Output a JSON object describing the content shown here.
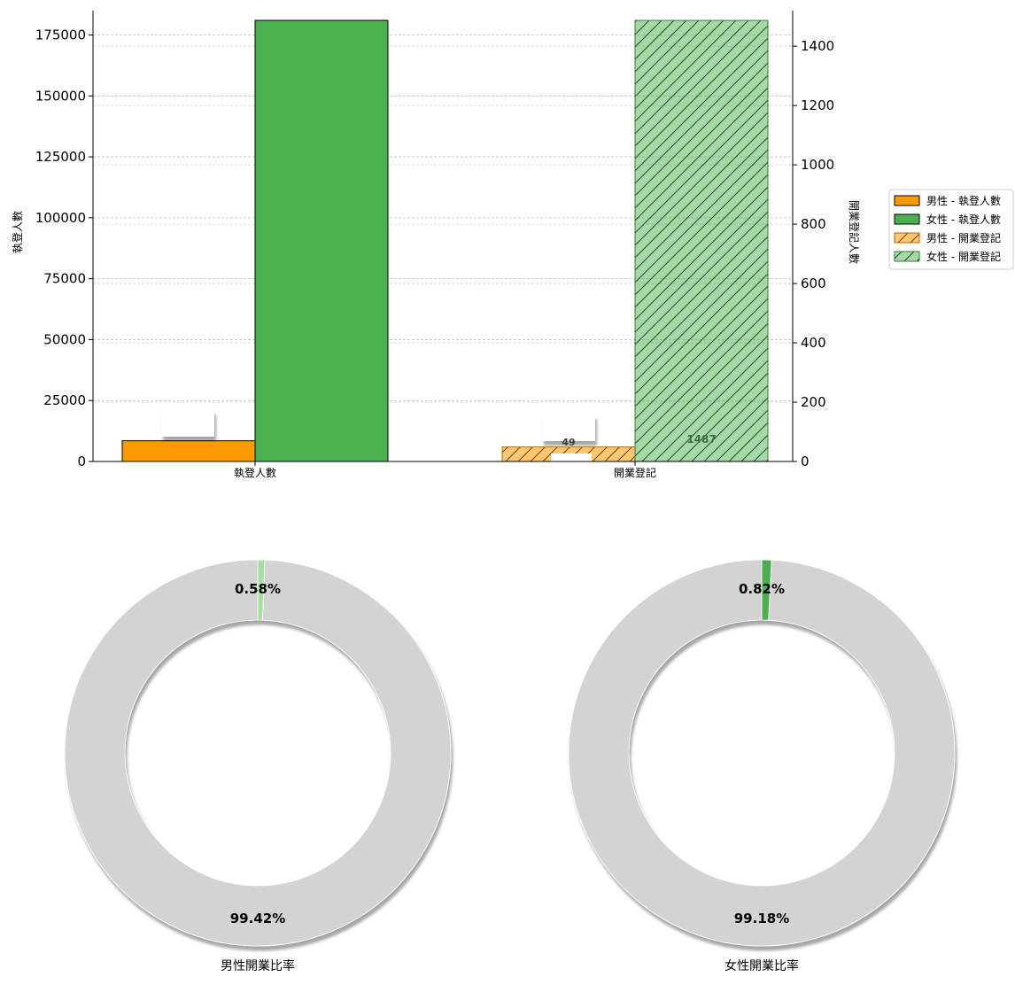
{
  "chart_data": [
    {
      "type": "bar",
      "categories": [
        "執登人數",
        "開業登記"
      ],
      "left_axis": {
        "label": "執登人數",
        "ylim": [
          0,
          185000
        ],
        "ticks": [
          0,
          25000,
          50000,
          75000,
          100000,
          125000,
          150000,
          175000
        ],
        "tick_labels": [
          "0",
          "25000",
          "50000",
          "75000",
          "100000",
          "125000",
          "150000",
          "175000"
        ]
      },
      "right_axis": {
        "label": "開業登記人數",
        "ylim": [
          0,
          1520
        ],
        "ticks": [
          0,
          200,
          400,
          600,
          800,
          1000,
          1200,
          1400
        ],
        "tick_labels": [
          "0",
          "200",
          "400",
          "600",
          "800",
          "1000",
          "1200",
          "1400"
        ]
      },
      "series": [
        {
          "name": "男性 - 執登人數",
          "category": "執登人數",
          "axis": "left",
          "value": 8500,
          "color": "#ff9900",
          "hatch": false,
          "alpha": 1.0
        },
        {
          "name": "女性 - 執登人數",
          "category": "執登人數",
          "axis": "left",
          "value": 181000,
          "color": "#4caf50",
          "hatch": false,
          "alpha": 1.0
        },
        {
          "name": "男性 - 開業登記",
          "category": "開業登記",
          "axis": "right",
          "value": 49,
          "color": "#ff9900",
          "hatch": true,
          "alpha": 0.6
        },
        {
          "name": "女性 - 開業登記",
          "category": "開業登記",
          "axis": "right",
          "value": 1487,
          "color": "#4caf50",
          "hatch": true,
          "alpha": 0.5
        }
      ],
      "data_labels": [
        {
          "series": "男性 - 開業登記",
          "text": "49"
        },
        {
          "series": "女性 - 開業登記",
          "text": "1487"
        }
      ],
      "grid": true,
      "legend": "right"
    },
    {
      "type": "pie",
      "title": "男性開業比率",
      "labels": [
        "0.58%",
        "99.42%"
      ],
      "values": [
        0.58,
        99.42
      ],
      "colors": [
        "#a9dba4",
        "#d3d3d3"
      ],
      "donut": true
    },
    {
      "type": "pie",
      "title": "女性開業比率",
      "labels": [
        "0.82%",
        "99.18%"
      ],
      "values": [
        0.82,
        99.18
      ],
      "colors": [
        "#4caf50",
        "#d3d3d3"
      ],
      "donut": true
    }
  ]
}
